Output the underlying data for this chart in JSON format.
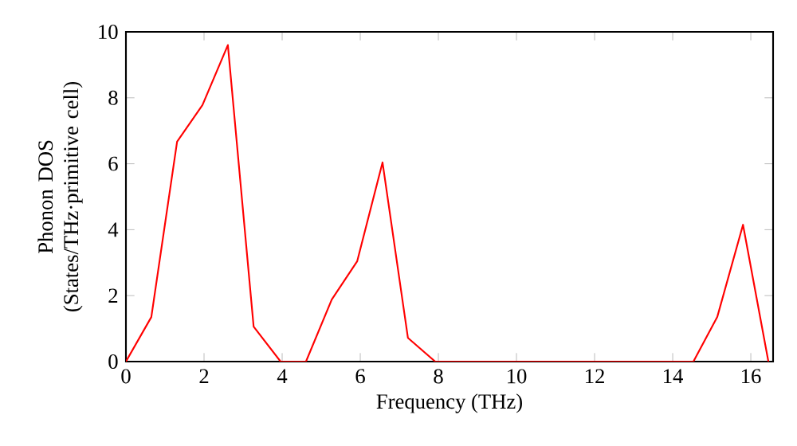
{
  "chart_data": {
    "type": "line",
    "xlabel": "Frequency (THz)",
    "ylabel": "Phonon DOS (States/THz·primitive cell)",
    "x": [
      0,
      0.65,
      1.31,
      1.96,
      2.61,
      3.27,
      3.96,
      4.61,
      5.27,
      5.92,
      6.57,
      7.22,
      7.92,
      14.53,
      15.14,
      15.8,
      16.45
    ],
    "series": [
      {
        "color": "#ff0000",
        "values": [
          0,
          1.35,
          6.67,
          7.78,
          9.6,
          1.06,
          0,
          0,
          1.88,
          3.04,
          6.04,
          0.72,
          0,
          0,
          1.35,
          4.15,
          0
        ]
      }
    ],
    "xlim": [
      0,
      16.57
    ],
    "ylim": [
      0,
      10
    ],
    "xticks": [
      0,
      2,
      4,
      6,
      8,
      10,
      12,
      14,
      16
    ],
    "yticks": [
      0,
      2,
      4,
      6,
      8,
      10
    ]
  }
}
